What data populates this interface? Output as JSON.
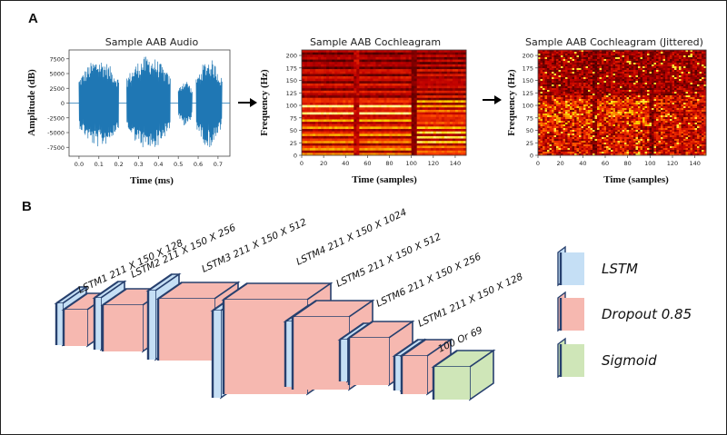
{
  "panels": {
    "a": "A",
    "b": "B"
  },
  "chart_data": [
    {
      "type": "line",
      "title": "Sample AAB Audio",
      "xlabel": "Time (ms)",
      "ylabel": "Amplitude (dB)",
      "xlim": [
        -0.05,
        0.76
      ],
      "ylim": [
        -9000,
        9000
      ],
      "x_ticks": [
        "0.0",
        "0.1",
        "0.2",
        "0.3",
        "0.4",
        "0.5",
        "0.6",
        "0.7"
      ],
      "y_ticks": [
        "7500",
        "5000",
        "2500",
        "0",
        "-2500",
        "-5000",
        "-7500"
      ],
      "bursts": [
        {
          "start": 0.0,
          "end": 0.2,
          "peak": 7500
        },
        {
          "start": 0.24,
          "end": 0.46,
          "peak": 8000
        },
        {
          "start": 0.5,
          "end": 0.57,
          "peak": 4000
        },
        {
          "start": 0.59,
          "end": 0.72,
          "peak": 7500
        }
      ],
      "color": "#1f77b4"
    },
    {
      "type": "heatmap",
      "title": "Sample AAB Cochleagram",
      "xlabel": "Time (samples)",
      "ylabel": "Frequency (Hz)",
      "xlim": [
        0,
        150
      ],
      "ylim": [
        0,
        211
      ],
      "x_ticks": [
        "0",
        "20",
        "40",
        "60",
        "80",
        "100",
        "120",
        "140"
      ],
      "y_ticks": [
        "200",
        "175",
        "150",
        "125",
        "100",
        "75",
        "50",
        "25",
        "0"
      ]
    },
    {
      "type": "heatmap",
      "title": "Sample AAB Cochleagram (Jittered)",
      "xlabel": "Time (samples)",
      "ylabel": "Frequency (Hz)",
      "xlim": [
        0,
        150
      ],
      "ylim": [
        0,
        211
      ],
      "x_ticks": [
        "0",
        "20",
        "40",
        "60",
        "80",
        "100",
        "120",
        "140"
      ],
      "y_ticks": [
        "200",
        "175",
        "150",
        "125",
        "100",
        "75",
        "50",
        "25",
        "0"
      ]
    }
  ],
  "network": {
    "layers": [
      {
        "label": "LSTM1 211 X 150 X 128"
      },
      {
        "label": "LSTM2 211 X 150 X 256"
      },
      {
        "label": "LSTM3 211 X 150 X 512"
      },
      {
        "label": "LSTM4 211 X 150 X 1024"
      },
      {
        "label": "LSTM5 211 X 150 X 512"
      },
      {
        "label": "LSTM6 211 X 150 X 256"
      },
      {
        "label": "LSTM1 211 X 150 X 128"
      },
      {
        "label": "100  Or 69"
      }
    ],
    "legend": [
      {
        "label": "LSTM",
        "color": "#c5dff5"
      },
      {
        "label": "Dropout 0.85",
        "color": "#f6b8b0"
      },
      {
        "label": "Sigmoid",
        "color": "#cfe6b8"
      }
    ],
    "colors": {
      "lstm": "#c5dff5",
      "dropout": "#f6b8b0",
      "sigmoid": "#cfe6b8",
      "edge": "#27406e"
    }
  }
}
